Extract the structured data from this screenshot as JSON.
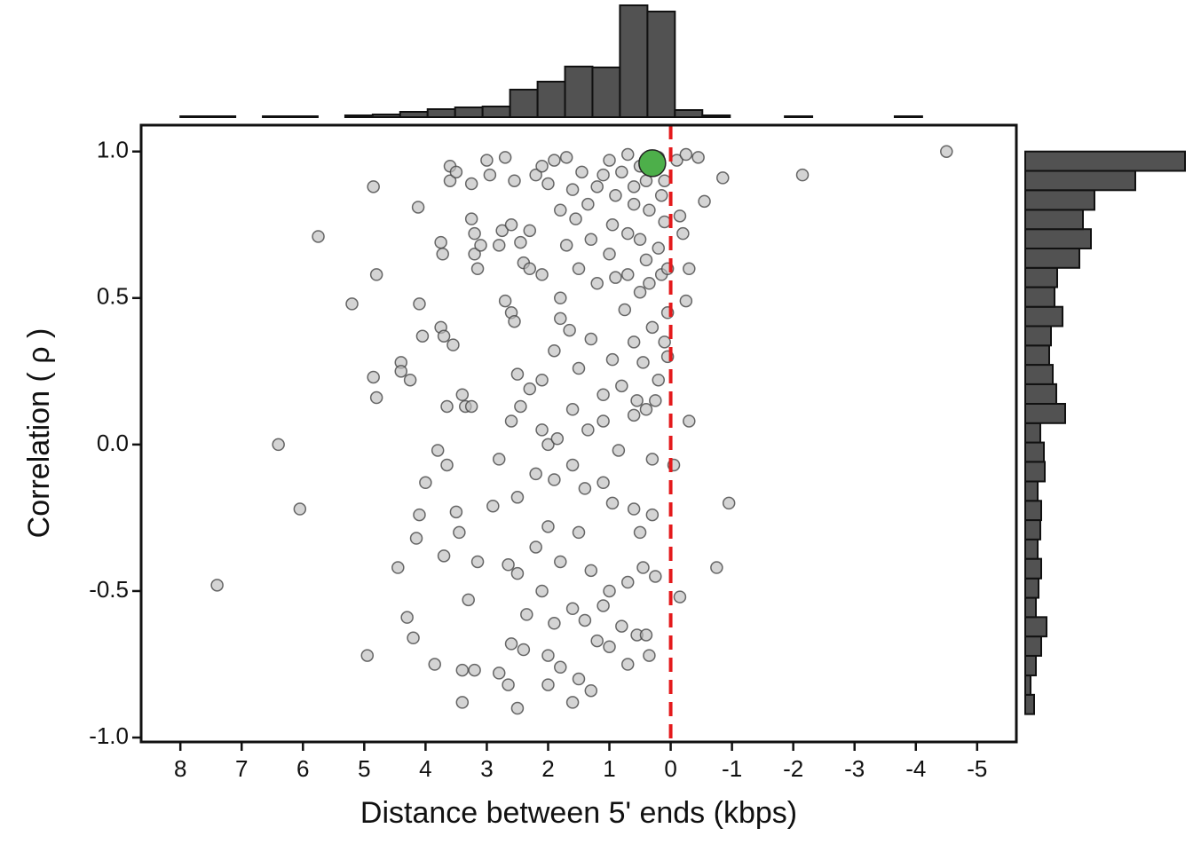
{
  "chart_data": [
    {
      "type": "scatter",
      "xlabel": "Distance between 5' ends (kbps)",
      "ylabel": "Correlation ( ρ )",
      "xlim": [
        8.64,
        -5.64
      ],
      "ylim": [
        -1.015,
        1.09
      ],
      "xticks": [
        8,
        7,
        6,
        5,
        4,
        3,
        2,
        1,
        0,
        -1,
        -2,
        -3,
        -4,
        -5
      ],
      "yticks": [
        {
          "value": 1.0,
          "label": "1.0"
        },
        {
          "value": 0.5,
          "label": "0.5"
        },
        {
          "value": 0.0,
          "label": "0.0"
        },
        {
          "value": -0.5,
          "label": "-0.5"
        },
        {
          "value": -1.0,
          "label": "-1.0"
        }
      ],
      "color": "#bdbdbd",
      "vline": 0,
      "vline_color": "#e41a1c",
      "highlight": {
        "x": 0.3,
        "y": 0.96,
        "color": "#4daf4a"
      },
      "x": [
        -4.5,
        -2.15,
        7.4,
        6.4,
        6.05,
        5.75,
        5.2,
        4.85,
        4.8,
        4.95,
        4.85,
        4.8,
        4.4,
        4.4,
        4.25,
        4.1,
        4.05,
        4.12,
        4.45,
        4.3,
        4.2,
        4.15,
        4.1,
        4.0,
        3.75,
        3.7,
        3.55,
        3.65,
        3.4,
        3.35,
        3.25,
        3.8,
        3.65,
        3.7,
        3.85,
        3.5,
        3.45,
        3.4,
        3.4,
        3.3,
        3.2,
        3.75,
        3.72,
        3.6,
        3.6,
        3.5,
        3.25,
        3.2,
        3.15,
        3.1,
        3.25,
        3.2,
        3.0,
        2.95,
        2.8,
        2.75,
        2.7,
        2.6,
        2.55,
        2.45,
        2.4,
        2.3,
        2.2,
        2.1,
        2.0,
        1.9,
        1.8,
        1.7,
        1.6,
        1.55,
        1.45,
        1.35,
        1.2,
        1.1,
        1.0,
        0.9,
        0.8,
        0.7,
        0.6,
        0.5,
        0.4,
        0.2,
        0.1,
        -0.1,
        -0.25,
        -0.45,
        -0.55,
        -0.85,
        -0.15,
        -0.2,
        -0.3,
        -0.25,
        -0.3,
        -0.15,
        -0.05,
        -0.95,
        -0.75,
        2.0,
        2.7,
        2.6,
        2.55,
        2.5,
        2.3,
        2.1,
        1.9,
        1.8,
        1.65,
        1.5,
        1.3,
        1.1,
        0.95,
        0.75,
        0.6,
        0.45,
        0.3,
        0.2,
        0.1,
        0.05,
        0.9,
        1.2,
        1.5,
        1.8,
        2.1,
        2.3,
        0.4,
        0.5,
        0.2,
        0.1,
        0.7,
        1.0,
        1.3,
        1.7,
        2.6,
        2.45,
        2.1,
        1.85,
        1.6,
        1.35,
        1.1,
        0.85,
        0.6,
        0.4,
        0.3,
        2.8,
        2.5,
        2.2,
        1.9,
        1.6,
        1.4,
        1.1,
        0.95,
        0.6,
        0.5,
        0.3,
        0.45,
        2.65,
        2.5,
        2.2,
        2.0,
        1.8,
        1.5,
        1.3,
        1.0,
        0.7,
        0.25,
        2.35,
        2.1,
        1.9,
        1.6,
        1.4,
        1.1,
        0.8,
        0.55,
        0.35,
        2.6,
        2.4,
        2.0,
        1.8,
        1.5,
        1.2,
        0.7,
        2.65,
        2.5,
        2.0,
        1.6,
        1.3,
        2.8,
        1.0,
        0.4,
        3.15,
        2.9,
        0.5,
        0.35,
        0.15,
        0.05,
        0.25,
        0.6,
        0.35,
        0.15,
        0.05,
        0.7,
        0.95,
        0.55,
        0.8
      ],
      "y": [
        1.0,
        0.92,
        -0.48,
        0.0,
        -0.22,
        0.71,
        0.48,
        0.88,
        0.58,
        -0.72,
        0.23,
        0.16,
        0.28,
        0.25,
        0.22,
        0.48,
        0.37,
        0.81,
        -0.42,
        -0.59,
        -0.66,
        -0.32,
        -0.24,
        -0.13,
        0.4,
        0.37,
        0.34,
        0.13,
        0.17,
        0.13,
        0.13,
        -0.02,
        -0.07,
        -0.38,
        -0.75,
        -0.23,
        -0.3,
        -0.77,
        -0.88,
        -0.53,
        -0.77,
        0.69,
        0.65,
        0.9,
        0.95,
        0.93,
        0.77,
        0.65,
        0.6,
        0.68,
        0.89,
        0.72,
        0.97,
        0.92,
        0.68,
        0.73,
        0.98,
        0.75,
        0.9,
        0.69,
        0.62,
        0.73,
        0.92,
        0.95,
        0.89,
        0.97,
        0.8,
        0.98,
        0.87,
        0.77,
        0.93,
        0.82,
        0.88,
        0.92,
        0.97,
        0.85,
        0.93,
        0.99,
        0.88,
        0.95,
        0.9,
        0.98,
        0.9,
        0.97,
        0.99,
        0.98,
        0.83,
        0.91,
        0.78,
        0.72,
        0.6,
        0.49,
        0.08,
        -0.52,
        -0.07,
        -0.2,
        -0.42,
        0.0,
        0.49,
        0.45,
        0.42,
        0.24,
        0.19,
        0.22,
        0.32,
        0.43,
        0.39,
        0.26,
        0.36,
        0.17,
        0.29,
        0.46,
        0.35,
        0.28,
        0.4,
        0.22,
        0.35,
        0.45,
        0.57,
        0.55,
        0.6,
        0.5,
        0.58,
        0.6,
        0.63,
        0.7,
        0.67,
        0.76,
        0.72,
        0.65,
        0.7,
        0.68,
        0.08,
        0.13,
        0.05,
        0.02,
        0.12,
        0.05,
        0.08,
        -0.02,
        0.1,
        0.12,
        -0.05,
        -0.05,
        -0.18,
        -0.1,
        -0.12,
        -0.07,
        -0.15,
        -0.13,
        -0.2,
        -0.22,
        -0.3,
        -0.24,
        -0.42,
        -0.41,
        -0.44,
        -0.35,
        -0.28,
        -0.4,
        -0.3,
        -0.43,
        -0.5,
        -0.47,
        -0.45,
        -0.58,
        -0.5,
        -0.61,
        -0.56,
        -0.6,
        -0.55,
        -0.62,
        -0.65,
        -0.72,
        -0.68,
        -0.7,
        -0.72,
        -0.76,
        -0.8,
        -0.67,
        -0.75,
        -0.82,
        -0.9,
        -0.82,
        -0.88,
        -0.84,
        -0.78,
        -0.69,
        -0.65,
        -0.4,
        -0.21,
        0.52,
        0.55,
        0.58,
        0.3,
        0.15,
        0.82,
        0.8,
        0.85,
        0.6,
        0.58,
        0.75,
        0.15,
        0.2
      ]
    },
    {
      "type": "histogram",
      "orientation": "vertical",
      "color": "#525252",
      "bins": [
        8,
        7.552,
        7.103,
        6.655,
        6.207,
        5.759,
        5.31,
        4.862,
        4.414,
        3.966,
        3.517,
        3.069,
        2.621,
        2.172,
        1.724,
        1.276,
        0.828,
        0.379,
        -0.069,
        -0.517,
        -0.966,
        -1.414,
        -1.862,
        -2.31,
        -2.759,
        -3.207,
        -3.655,
        -4.103,
        -4.552,
        -5.0
      ],
      "counts": [
        1,
        1,
        0,
        1,
        1,
        0,
        2,
        3,
        6,
        9,
        11,
        12,
        31,
        40,
        57,
        56,
        126,
        119,
        8,
        2,
        0,
        0,
        1,
        0,
        0,
        0,
        1,
        0,
        0
      ]
    },
    {
      "type": "histogram",
      "orientation": "horizontal",
      "color": "#525252",
      "bins": [
        -0.92,
        -0.854,
        -0.788,
        -0.721,
        -0.655,
        -0.589,
        -0.523,
        -0.457,
        -0.39,
        -0.324,
        -0.258,
        -0.192,
        -0.126,
        -0.059,
        0.007,
        0.073,
        0.139,
        0.206,
        0.272,
        0.338,
        0.404,
        0.47,
        0.537,
        0.603,
        0.669,
        0.735,
        0.801,
        0.868,
        0.934,
        1.0
      ],
      "counts": [
        10,
        6,
        12,
        18,
        24,
        12,
        15,
        18,
        14,
        17,
        18,
        14,
        22,
        21,
        17,
        45,
        35,
        31,
        27,
        29,
        42,
        33,
        36,
        61,
        74,
        65,
        78,
        124,
        180
      ]
    }
  ]
}
